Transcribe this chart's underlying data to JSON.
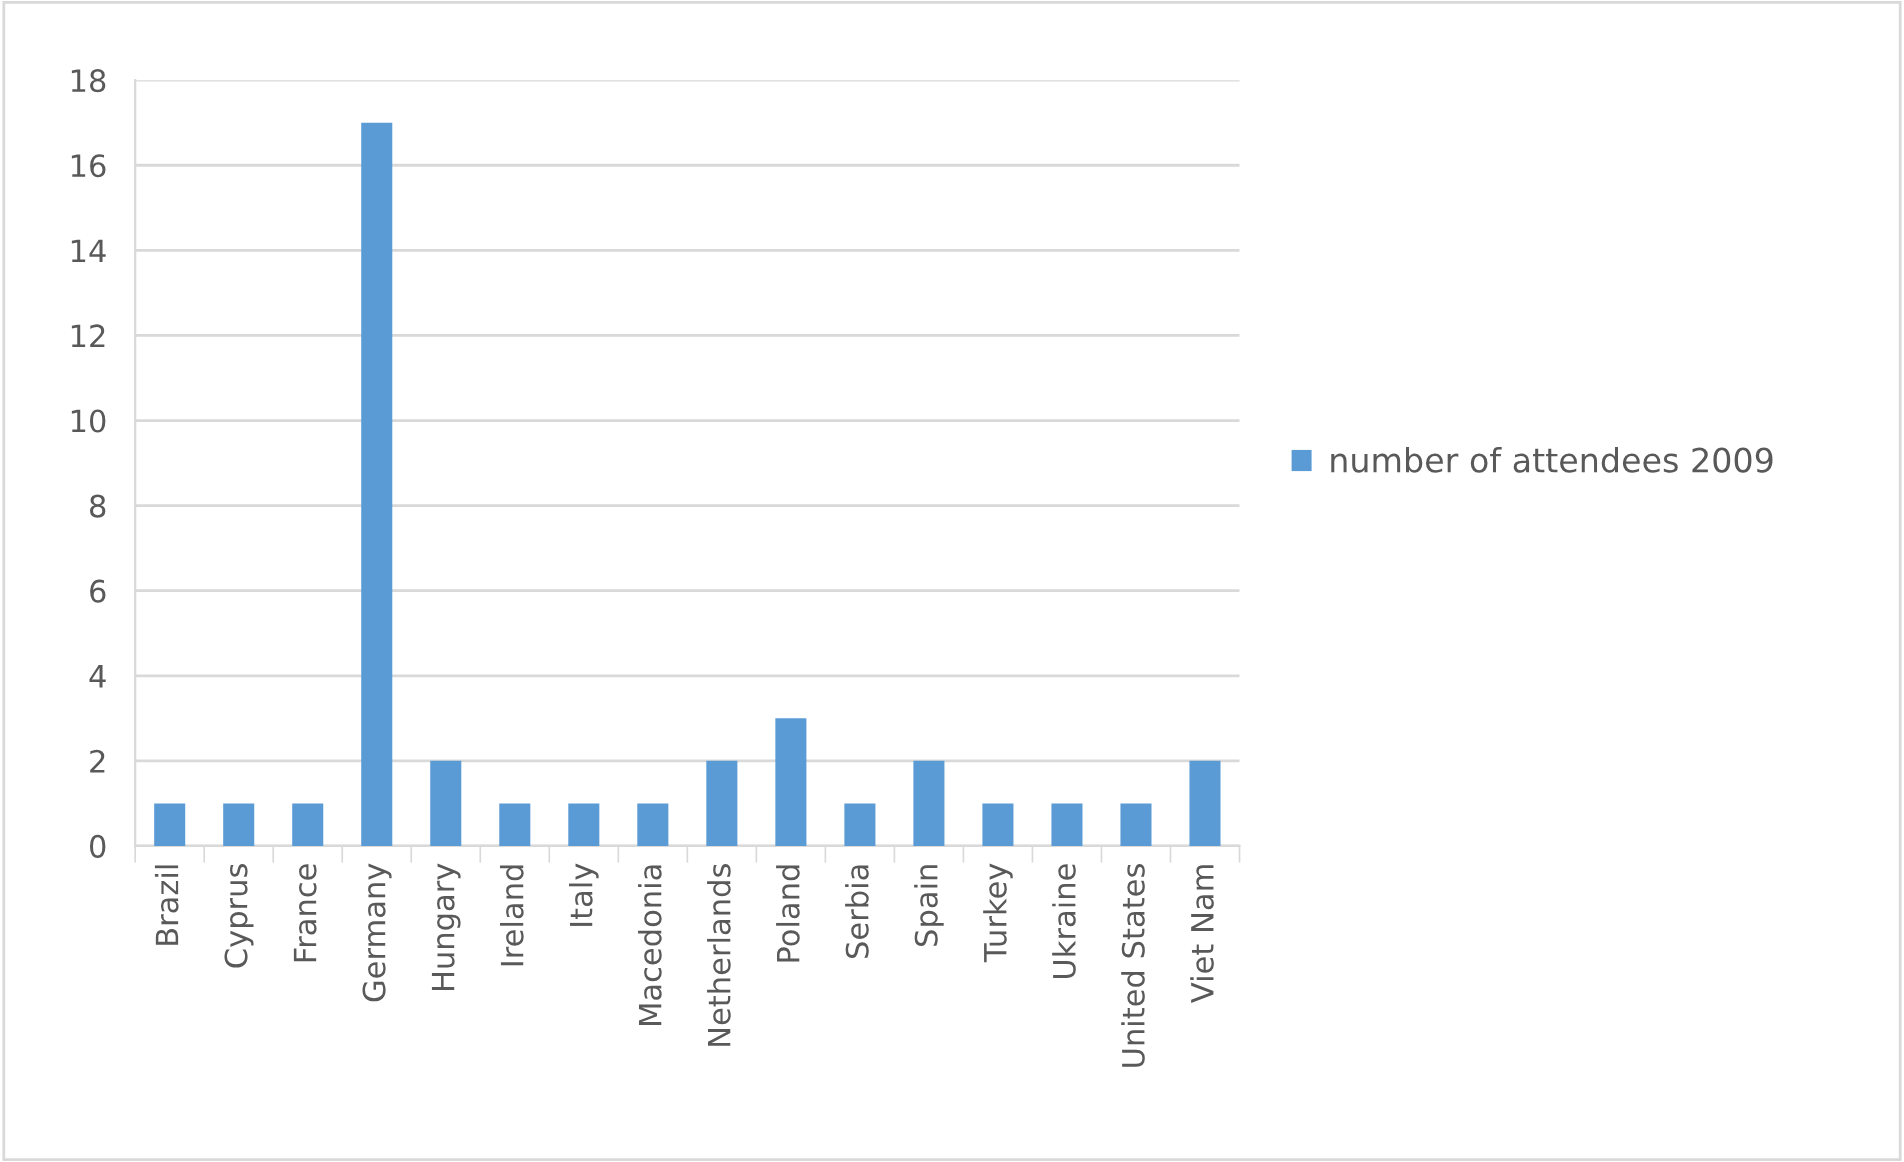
{
  "chart_data": {
    "type": "bar",
    "categories": [
      "Brazil",
      "Cyprus",
      "France",
      "Germany",
      "Hungary",
      "Ireland",
      "Italy",
      "Macedonia",
      "Netherlands",
      "Poland",
      "Serbia",
      "Spain",
      "Turkey",
      "Ukraine",
      "United States",
      "Viet Nam"
    ],
    "series": [
      {
        "name": "number of attendees 2009",
        "color": "#5b9bd5",
        "values": [
          1,
          1,
          1,
          17,
          2,
          1,
          1,
          1,
          2,
          3,
          1,
          2,
          1,
          1,
          1,
          2
        ]
      }
    ],
    "ylim": [
      0,
      18
    ],
    "yticks": [
      0,
      2,
      4,
      6,
      8,
      10,
      12,
      14,
      16,
      18
    ],
    "grid": "y",
    "legend": "right"
  }
}
